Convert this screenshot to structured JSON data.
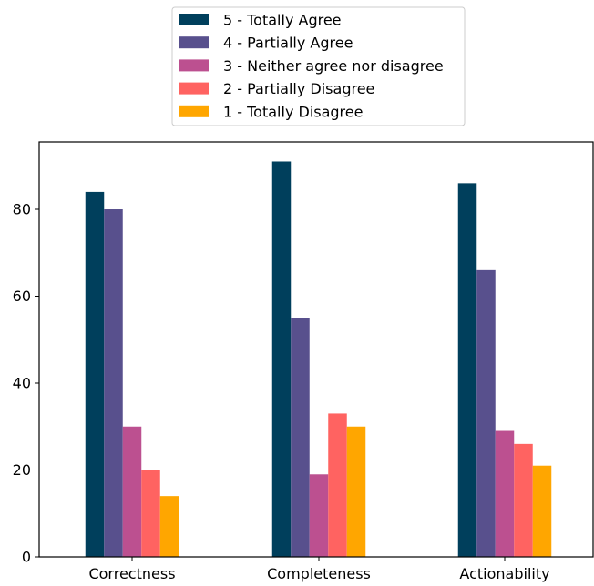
{
  "chart_data": {
    "type": "bar",
    "title": "",
    "xlabel": "",
    "ylabel": "",
    "categories": [
      "Correctness",
      "Completeness",
      "Actionability"
    ],
    "series": [
      {
        "name": "5 - Totally Agree",
        "color": "#003f5c",
        "values": [
          84,
          91,
          86
        ]
      },
      {
        "name": "4 - Partially Agree",
        "color": "#58508d",
        "values": [
          80,
          55,
          66
        ]
      },
      {
        "name": "3 - Neither agree nor disagree",
        "color": "#bc5090",
        "values": [
          30,
          19,
          29
        ]
      },
      {
        "name": "2 - Partially Disagree",
        "color": "#ff6361",
        "values": [
          20,
          33,
          26
        ]
      },
      {
        "name": "1 - Totally Disagree",
        "color": "#ffa600",
        "values": [
          14,
          30,
          21
        ]
      }
    ],
    "ylim": [
      0,
      95.5
    ],
    "yticks": [
      0,
      20,
      40,
      60,
      80
    ],
    "grid": false,
    "legend_position": "top-center"
  }
}
